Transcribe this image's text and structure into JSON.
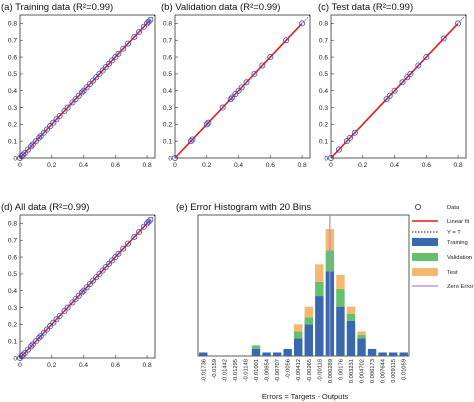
{
  "colors": {
    "fit": "#e41a1c",
    "marker": "#3b4cc0",
    "training": "#3a68ad",
    "validation": "#66bf6a",
    "test": "#f6b86e",
    "zero_error": "#a98adf",
    "axis": "#333333"
  },
  "chart_data": [
    {
      "type": "scatter",
      "panel_label": "(a)",
      "title": "Training data (R²=0.99)",
      "xlim": [
        0,
        0.85
      ],
      "ylim": [
        0,
        0.85
      ],
      "xticks": [
        "0",
        "0.2",
        "0.4",
        "0.6",
        "0.8"
      ],
      "yticks": [
        "0",
        "0.1",
        "0.2",
        "0.3",
        "0.4",
        "0.5",
        "0.6",
        "0.7",
        "0.8"
      ],
      "x": [
        0.0,
        0.01,
        0.02,
        0.03,
        0.05,
        0.07,
        0.08,
        0.1,
        0.12,
        0.13,
        0.15,
        0.17,
        0.19,
        0.21,
        0.23,
        0.25,
        0.28,
        0.3,
        0.33,
        0.35,
        0.37,
        0.39,
        0.4,
        0.42,
        0.44,
        0.46,
        0.48,
        0.5,
        0.52,
        0.54,
        0.56,
        0.58,
        0.6,
        0.62,
        0.65,
        0.68,
        0.72,
        0.75,
        0.78,
        0.8,
        0.81,
        0.82
      ],
      "y": [
        0.0,
        0.01,
        0.02,
        0.03,
        0.05,
        0.07,
        0.08,
        0.1,
        0.12,
        0.13,
        0.15,
        0.17,
        0.19,
        0.21,
        0.23,
        0.25,
        0.28,
        0.3,
        0.33,
        0.35,
        0.37,
        0.39,
        0.4,
        0.42,
        0.44,
        0.46,
        0.48,
        0.5,
        0.52,
        0.54,
        0.56,
        0.58,
        0.6,
        0.62,
        0.65,
        0.68,
        0.72,
        0.75,
        0.78,
        0.8,
        0.81,
        0.82
      ],
      "fit": [
        [
          0,
          0
        ],
        [
          0.82,
          0.82
        ]
      ]
    },
    {
      "type": "scatter",
      "panel_label": "(b)",
      "title": "Validation data (R²=0.99)",
      "xlim": [
        0,
        0.85
      ],
      "ylim": [
        0,
        0.85
      ],
      "xticks": [
        "0",
        "0.2",
        "0.4",
        "0.6",
        "0.8"
      ],
      "yticks": [
        "0",
        "0.1",
        "0.2",
        "0.3",
        "0.4",
        "0.5",
        "0.6",
        "0.7",
        "0.8"
      ],
      "x": [
        0.0,
        0.1,
        0.11,
        0.2,
        0.21,
        0.3,
        0.35,
        0.36,
        0.38,
        0.4,
        0.42,
        0.45,
        0.5,
        0.55,
        0.6,
        0.7,
        0.8
      ],
      "y": [
        0.0,
        0.1,
        0.11,
        0.2,
        0.21,
        0.3,
        0.35,
        0.36,
        0.38,
        0.4,
        0.42,
        0.45,
        0.5,
        0.55,
        0.6,
        0.7,
        0.8
      ],
      "fit": [
        [
          0,
          0
        ],
        [
          0.8,
          0.8
        ]
      ]
    },
    {
      "type": "scatter",
      "panel_label": "(c)",
      "title": "Test data (R²=0.99)",
      "xlim": [
        0,
        0.85
      ],
      "ylim": [
        0,
        0.85
      ],
      "xticks": [
        "0",
        "0.2",
        "0.4",
        "0.6",
        "0.8"
      ],
      "yticks": [
        "0",
        "0.1",
        "0.2",
        "0.3",
        "0.4",
        "0.5",
        "0.6",
        "0.7",
        "0.8"
      ],
      "x": [
        0.0,
        0.05,
        0.1,
        0.12,
        0.15,
        0.35,
        0.37,
        0.4,
        0.45,
        0.48,
        0.5,
        0.55,
        0.6,
        0.71,
        0.8
      ],
      "y": [
        0.0,
        0.05,
        0.1,
        0.12,
        0.15,
        0.35,
        0.37,
        0.4,
        0.45,
        0.48,
        0.5,
        0.55,
        0.6,
        0.71,
        0.8
      ],
      "fit": [
        [
          0,
          0
        ],
        [
          0.8,
          0.8
        ]
      ]
    },
    {
      "type": "scatter",
      "panel_label": "(d)",
      "title": "All data (R²=0.99)",
      "xlim": [
        0,
        0.85
      ],
      "ylim": [
        0,
        0.85
      ],
      "xticks": [
        "0",
        "0.2",
        "0.4",
        "0.6",
        "0.8"
      ],
      "yticks": [
        "0",
        "0.1",
        "0.2",
        "0.3",
        "0.4",
        "0.5",
        "0.6",
        "0.7",
        "0.8"
      ],
      "x": [
        0.0,
        0.01,
        0.02,
        0.03,
        0.05,
        0.07,
        0.08,
        0.1,
        0.12,
        0.13,
        0.15,
        0.17,
        0.19,
        0.21,
        0.23,
        0.25,
        0.28,
        0.3,
        0.33,
        0.35,
        0.37,
        0.39,
        0.4,
        0.42,
        0.44,
        0.46,
        0.48,
        0.5,
        0.52,
        0.54,
        0.56,
        0.58,
        0.6,
        0.62,
        0.65,
        0.68,
        0.72,
        0.75,
        0.78,
        0.8,
        0.81,
        0.82
      ],
      "y": [
        0.0,
        0.01,
        0.02,
        0.03,
        0.05,
        0.07,
        0.08,
        0.1,
        0.12,
        0.13,
        0.15,
        0.17,
        0.19,
        0.21,
        0.23,
        0.25,
        0.28,
        0.3,
        0.33,
        0.35,
        0.37,
        0.39,
        0.4,
        0.42,
        0.44,
        0.46,
        0.48,
        0.5,
        0.52,
        0.54,
        0.56,
        0.58,
        0.6,
        0.62,
        0.65,
        0.68,
        0.72,
        0.75,
        0.78,
        0.8,
        0.81,
        0.82
      ],
      "fit": [
        [
          0,
          0
        ],
        [
          0.82,
          0.82
        ]
      ]
    },
    {
      "type": "bar",
      "stacked": true,
      "panel_label": "(e)",
      "title": "Error Histogram with 20 Bins",
      "xlabel": "Errors = Targets - Outputs",
      "categories": [
        "-0.01736",
        "-0.0159",
        "-0.01442",
        "-0.01295",
        "-0.01148",
        "-0.01001",
        "-0.00854",
        "-0.00707",
        "-0.0056",
        "-0.00412",
        "-0.00265",
        "-0.00118",
        "0.000289",
        "0.00176",
        "0.003231",
        "0.004702",
        "0.006173",
        "0.007644",
        "0.009115",
        "0.01059"
      ],
      "series": [
        {
          "name": "Training",
          "values": [
            1,
            0,
            0,
            0,
            0,
            2,
            1,
            1,
            2,
            5,
            9,
            17,
            24,
            14,
            10,
            5,
            2,
            1,
            1,
            1
          ]
        },
        {
          "name": "Validation",
          "values": [
            0,
            0,
            0,
            0,
            0,
            1,
            0,
            0,
            0,
            2,
            2,
            4,
            6,
            5,
            2,
            1,
            0,
            0,
            0,
            0
          ]
        },
        {
          "name": "Test",
          "values": [
            0,
            0,
            0,
            0,
            0,
            0,
            0,
            0,
            0,
            2,
            3,
            5,
            6,
            4,
            2,
            1,
            0,
            0,
            0,
            0
          ]
        }
      ],
      "zero_error_index": 12,
      "ylim": [
        0,
        40
      ],
      "legend_position": "right",
      "legend": [
        "Data",
        "Linear fit",
        "Y = T",
        "Training",
        "Validation",
        "Test",
        "Zero Error"
      ]
    }
  ]
}
